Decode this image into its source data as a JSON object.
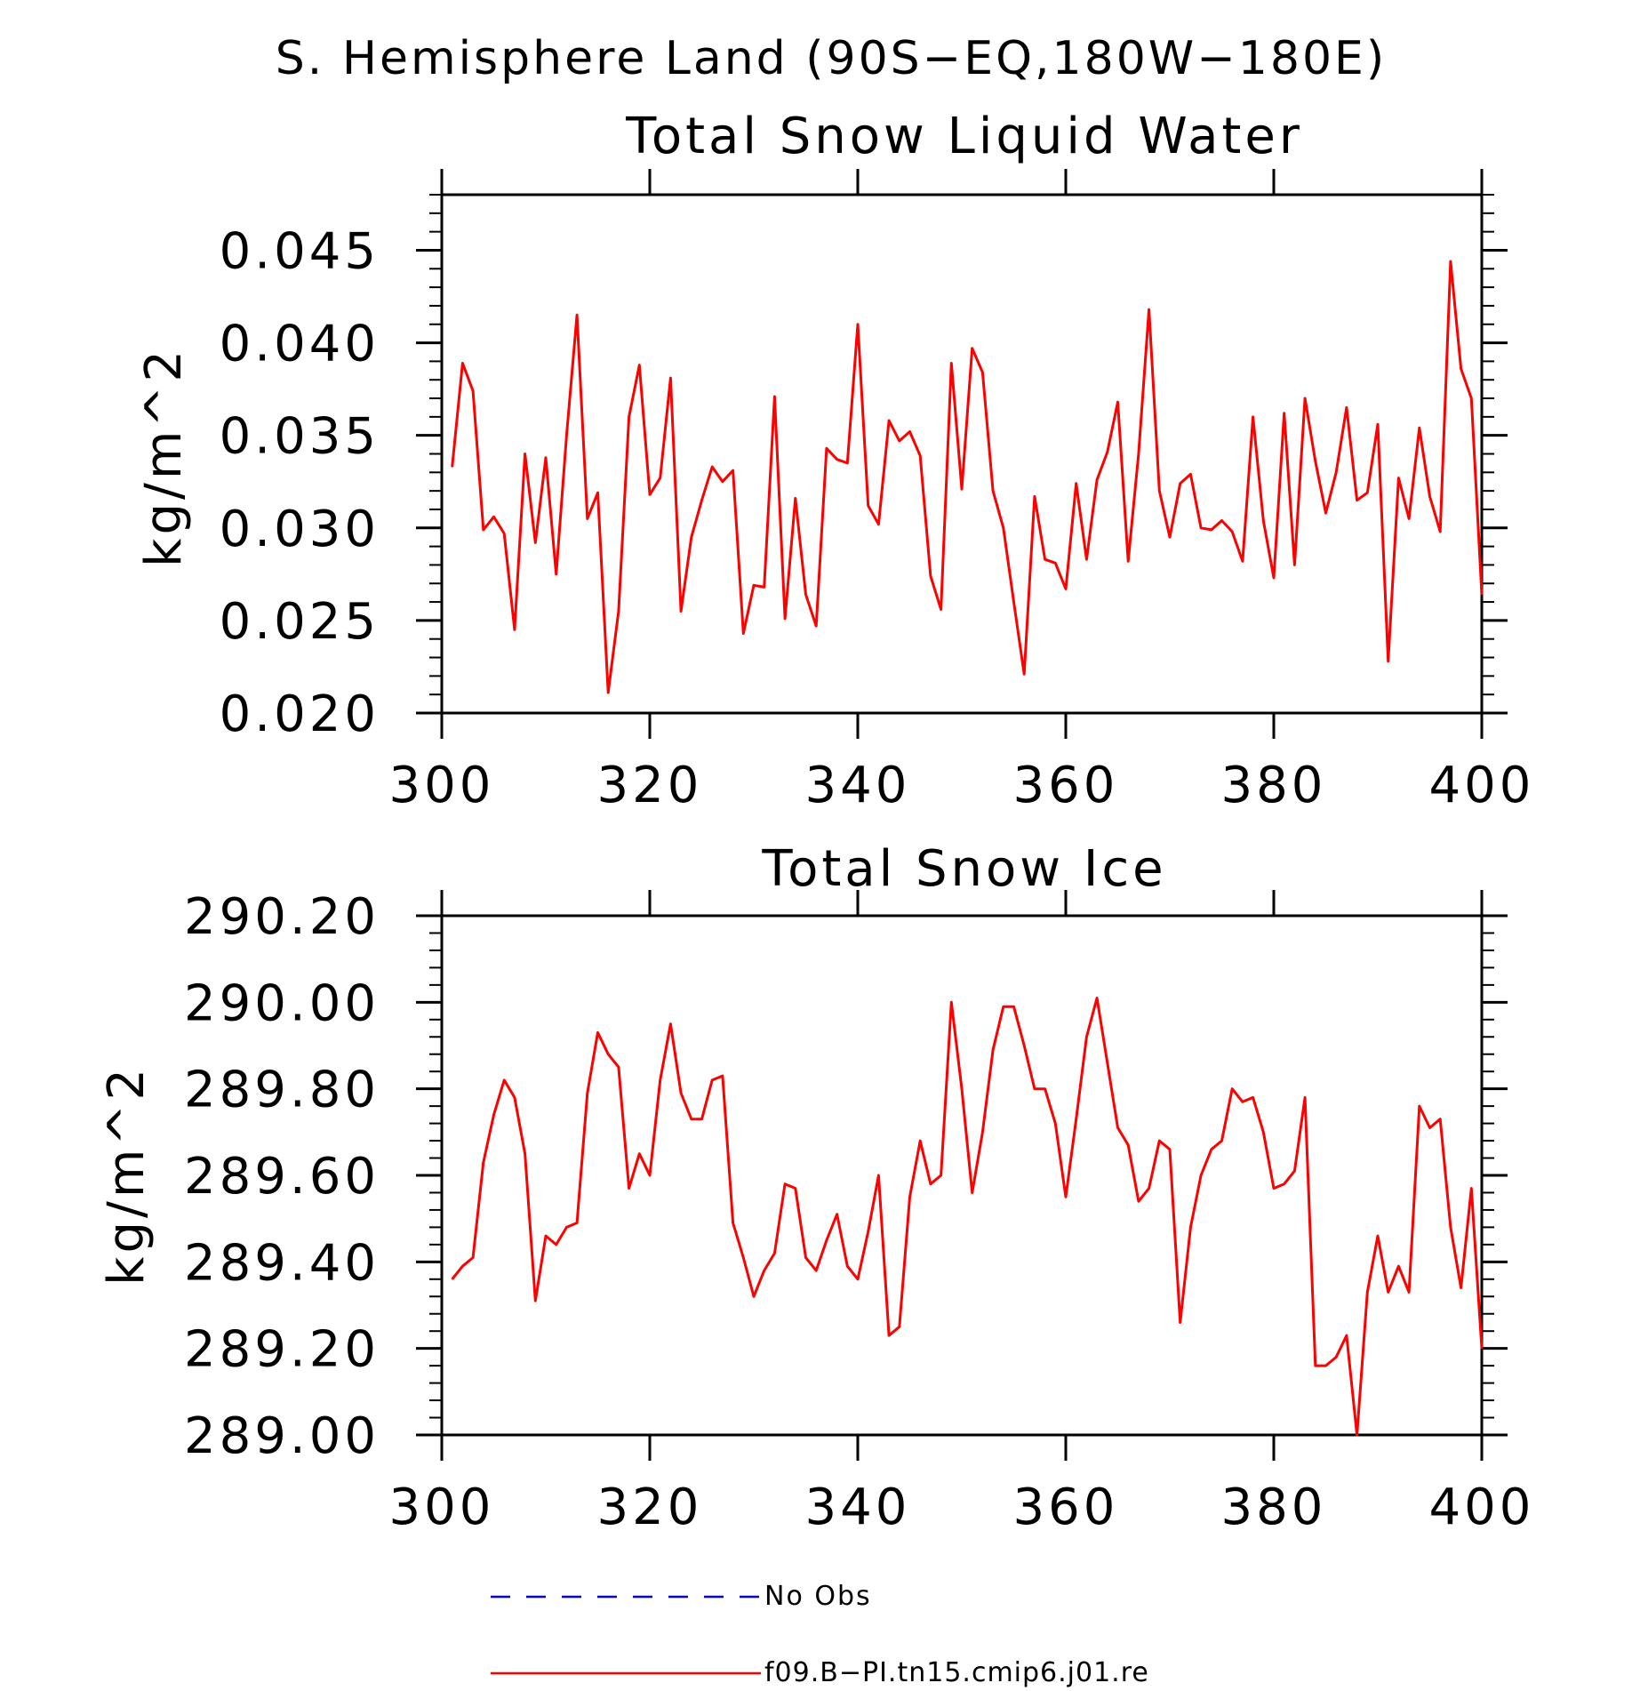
{
  "figure": {
    "title": "S. Hemisphere Land (90S−EQ,180W−180E)",
    "legend": [
      {
        "label": "No Obs",
        "color": "#0000ff",
        "style": "dashed"
      },
      {
        "label": "f09.B−PI.tn15.cmip6.j01.re",
        "color": "#ff0000",
        "style": "solid"
      }
    ]
  },
  "chart_data": [
    {
      "type": "line",
      "title": "Total Snow Liquid Water",
      "xlabel": "",
      "ylabel": "kg/m^2",
      "xlim": [
        300,
        400
      ],
      "ylim": [
        0.02,
        0.048
      ],
      "xticks": [
        300,
        320,
        340,
        360,
        380,
        400
      ],
      "xtick_labels": [
        "300",
        "320",
        "340",
        "360",
        "380",
        "400"
      ],
      "yticks": [
        0.02,
        0.025,
        0.03,
        0.035,
        0.04,
        0.045
      ],
      "ytick_labels": [
        "0.020",
        "0.025",
        "0.030",
        "0.035",
        "0.040",
        "0.045"
      ],
      "grid": false,
      "series": [
        {
          "name": "f09.B−PI.tn15.cmip6.j01.re",
          "color": "#ff0000",
          "x_start": 301,
          "x_step": 1,
          "values": [
            0.0333,
            0.0389,
            0.0374,
            0.0299,
            0.0306,
            0.0297,
            0.0245,
            0.034,
            0.0292,
            0.0338,
            0.0275,
            0.035,
            0.0415,
            0.0305,
            0.0319,
            0.0211,
            0.0255,
            0.036,
            0.0388,
            0.0318,
            0.0327,
            0.0381,
            0.0255,
            0.0295,
            0.0315,
            0.0333,
            0.0325,
            0.0331,
            0.0243,
            0.0269,
            0.0268,
            0.0371,
            0.0251,
            0.0316,
            0.0264,
            0.0247,
            0.0343,
            0.0337,
            0.0335,
            0.041,
            0.0312,
            0.0302,
            0.0358,
            0.0347,
            0.0352,
            0.0339,
            0.0274,
            0.0256,
            0.0389,
            0.0321,
            0.0397,
            0.0384,
            0.032,
            0.03,
            0.026,
            0.0221,
            0.0317,
            0.0283,
            0.0281,
            0.0267,
            0.0324,
            0.0283,
            0.0326,
            0.0341,
            0.0368,
            0.0282,
            0.034,
            0.0418,
            0.032,
            0.0295,
            0.0324,
            0.0329,
            0.03,
            0.0299,
            0.0304,
            0.0298,
            0.0282,
            0.036,
            0.0304,
            0.0273,
            0.0362,
            0.028,
            0.037,
            0.0336,
            0.0308,
            0.033,
            0.0365,
            0.0315,
            0.0319,
            0.0356,
            0.0228,
            0.0327,
            0.0305,
            0.0354,
            0.0317,
            0.0298,
            0.0444,
            0.0386,
            0.037,
            0.0264
          ]
        }
      ]
    },
    {
      "type": "line",
      "title": "Total Snow Ice",
      "xlabel": "",
      "ylabel": "kg/m^2",
      "xlim": [
        300,
        400
      ],
      "ylim": [
        289.0,
        290.2
      ],
      "xticks": [
        300,
        320,
        340,
        360,
        380,
        400
      ],
      "xtick_labels": [
        "300",
        "320",
        "340",
        "360",
        "380",
        "400"
      ],
      "yticks": [
        289.0,
        289.2,
        289.4,
        289.6,
        289.8,
        290.0,
        290.2
      ],
      "ytick_labels": [
        "289.00",
        "289.20",
        "289.40",
        "289.60",
        "289.80",
        "290.00",
        "290.20"
      ],
      "grid": false,
      "series": [
        {
          "name": "f09.B−PI.tn15.cmip6.j01.re",
          "color": "#ff0000",
          "x_start": 301,
          "x_step": 1,
          "values": [
            289.36,
            289.39,
            289.41,
            289.63,
            289.74,
            289.82,
            289.78,
            289.65,
            289.31,
            289.46,
            289.44,
            289.48,
            289.49,
            289.79,
            289.93,
            289.88,
            289.85,
            289.57,
            289.65,
            289.6,
            289.82,
            289.95,
            289.79,
            289.73,
            289.73,
            289.82,
            289.83,
            289.49,
            289.41,
            289.32,
            289.38,
            289.42,
            289.58,
            289.57,
            289.41,
            289.38,
            289.45,
            289.51,
            289.39,
            289.36,
            289.47,
            289.6,
            289.23,
            289.25,
            289.55,
            289.68,
            289.58,
            289.6,
            290.0,
            289.8,
            289.56,
            289.7,
            289.89,
            289.99,
            289.99,
            289.9,
            289.8,
            289.8,
            289.72,
            289.55,
            289.73,
            289.92,
            290.01,
            289.86,
            289.71,
            289.67,
            289.54,
            289.57,
            289.68,
            289.66,
            289.26,
            289.48,
            289.6,
            289.66,
            289.68,
            289.8,
            289.77,
            289.78,
            289.7,
            289.57,
            289.58,
            289.61,
            289.78,
            289.16,
            289.16,
            289.18,
            289.23,
            289.0,
            289.33,
            289.46,
            289.33,
            289.39,
            289.33,
            289.76,
            289.71,
            289.73,
            289.48,
            289.34,
            289.57,
            289.2
          ]
        }
      ]
    }
  ]
}
